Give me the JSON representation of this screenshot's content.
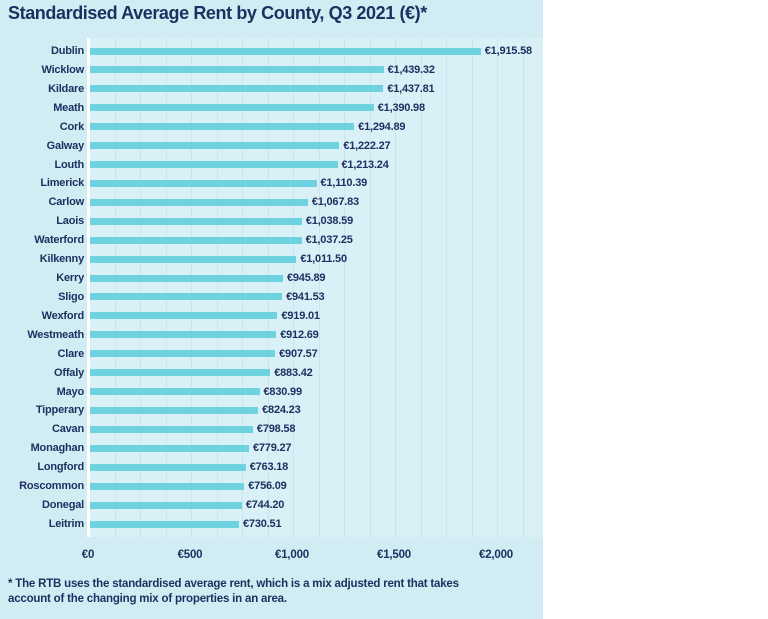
{
  "page": {
    "panel_bg": "#d2ecf4",
    "plot_bg": "#d9f0f7",
    "grid_color": "#c9e6f0",
    "bar_color": "#6fd2e1",
    "text_color": "#1d3160",
    "axis_line_color": "#ffffff"
  },
  "chart_data": {
    "type": "bar",
    "orientation": "horizontal",
    "title": "Standardised Average Rent by County, Q3 2021 (€)*",
    "categories": [
      "Dublin",
      "Wicklow",
      "Kildare",
      "Meath",
      "Cork",
      "Galway",
      "Louth",
      "Limerick",
      "Carlow",
      "Laois",
      "Waterford",
      "Kilkenny",
      "Kerry",
      "Sligo",
      "Wexford",
      "Westmeath",
      "Clare",
      "Offaly",
      "Mayo",
      "Tipperary",
      "Cavan",
      "Monaghan",
      "Longford",
      "Roscommon",
      "Donegal",
      "Leitrim"
    ],
    "values": [
      1915.58,
      1439.32,
      1437.81,
      1390.98,
      1294.89,
      1222.27,
      1213.24,
      1110.39,
      1067.83,
      1038.59,
      1037.25,
      1011.5,
      945.89,
      941.53,
      919.01,
      912.69,
      907.57,
      883.42,
      830.99,
      824.23,
      798.58,
      779.27,
      763.18,
      756.09,
      744.2,
      730.51
    ],
    "value_labels": [
      "€1,915.58",
      "€1,439.32",
      "€1,437.81",
      "€1,390.98",
      "€1,294.89",
      "€1,222.27",
      "€1,213.24",
      "€1,110.39",
      "€1,067.83",
      "€1,038.59",
      "€1,037.25",
      "€1,011.50",
      "€945.89",
      "€941.53",
      "€919.01",
      "€912.69",
      "€907.57",
      "€883.42",
      "€830.99",
      "€824.23",
      "€798.58",
      "€779.27",
      "€763.18",
      "€756.09",
      "€744.20",
      "€730.51"
    ],
    "x_ticks": [
      {
        "label": "€0",
        "value": 0
      },
      {
        "label": "€500",
        "value": 500
      },
      {
        "label": "€1,000",
        "value": 1000
      },
      {
        "label": "€1,500",
        "value": 1500
      },
      {
        "label": "€2,000",
        "value": 2000
      }
    ],
    "xlim": [
      0,
      2000
    ],
    "grid": "faint vertical gridlines every 125",
    "legend": "none",
    "footnote": [
      "* The RTB uses the standardised average rent, which is a mix adjusted rent that takes",
      "account of the changing mix of properties in an area."
    ]
  }
}
